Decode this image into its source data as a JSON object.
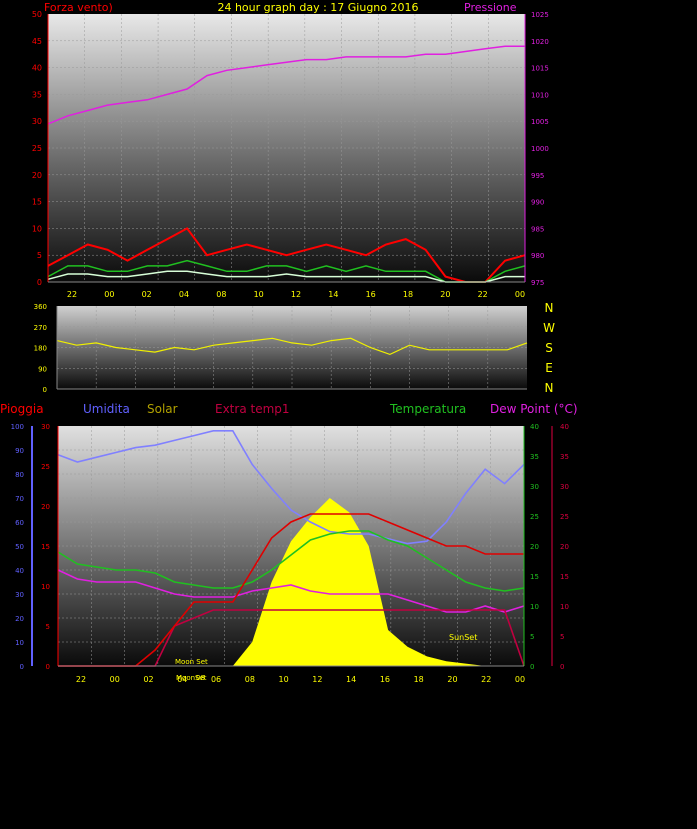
{
  "title": "24 hour graph day : 17 Giugno 2016",
  "colors": {
    "wind": "#ff0000",
    "gust": "#20c020",
    "avgwind": "#d8ffd8",
    "pressure": "#e020e0",
    "direction": "#f0f000",
    "rain": "#e00000",
    "humidity": "#8080ff",
    "solar": "#b0a000",
    "solarfill": "#ffff00",
    "extratemp": "#c00040",
    "temperature": "#20c020",
    "dewpoint": "#e020e0",
    "axis_left1": "#ff0000",
    "axis_right1": "#e020e0",
    "axis_rain": "#ff0000",
    "axis_hum": "#6060ff",
    "axis_temp": "#20c020",
    "axis_dew": "#e00040"
  },
  "chart_data": [
    {
      "type": "line",
      "id": "wind-pressure",
      "title": "24 hour graph day : 17 Giugno 2016",
      "left_label": "Forza vento)",
      "right_label": "Pressione",
      "x_ticks": [
        "22",
        "00",
        "02",
        "04",
        "08",
        "10",
        "12",
        "14",
        "16",
        "18",
        "20",
        "22",
        "00"
      ],
      "ylim_left": [
        0,
        50
      ],
      "yticks_left": [
        "0",
        "5",
        "10",
        "15",
        "20",
        "25",
        "30",
        "35",
        "40",
        "45",
        "50"
      ],
      "ylim_right": [
        975,
        1025
      ],
      "yticks_right": [
        "975",
        "980",
        "985",
        "990",
        "995",
        "1000",
        "1005",
        "1010",
        "1015",
        "1020",
        "1025"
      ],
      "x": [
        0,
        1,
        2,
        3,
        4,
        5,
        6,
        7,
        8,
        9,
        10,
        11,
        12,
        13,
        14,
        15,
        16,
        17,
        18,
        19,
        20,
        21,
        22,
        23,
        24
      ],
      "series": [
        {
          "key": "pressure",
          "values": [
            1004.5,
            1006,
            1007,
            1008,
            1008.5,
            1009,
            1010,
            1011,
            1013.5,
            1014.5,
            1015,
            1015.5,
            1016,
            1016.5,
            1016.5,
            1017,
            1017,
            1017,
            1017,
            1017.5,
            1017.5,
            1018,
            1018.5,
            1019,
            1019
          ]
        },
        {
          "key": "wind",
          "values": [
            3,
            5,
            7,
            6,
            4,
            6,
            8,
            10,
            5,
            6,
            7,
            6,
            5,
            6,
            7,
            6,
            5,
            7,
            8,
            6,
            1,
            0,
            0,
            4,
            5
          ]
        },
        {
          "key": "gust",
          "values": [
            1,
            3,
            3,
            2,
            2,
            3,
            3,
            4,
            3,
            2,
            2,
            3,
            3,
            2,
            3,
            2,
            3,
            2,
            2,
            2,
            0,
            0,
            0,
            2,
            3
          ]
        },
        {
          "key": "avgwind",
          "values": [
            0.5,
            1.5,
            1.5,
            1,
            1,
            1.5,
            2,
            2,
            1.5,
            1,
            1,
            1,
            1.5,
            1,
            1,
            1,
            1,
            1,
            1,
            1,
            0,
            0,
            0,
            1,
            1
          ]
        }
      ]
    },
    {
      "type": "line",
      "id": "wind-direction",
      "ylim": [
        0,
        360
      ],
      "yticks": [
        "0",
        "90",
        "180",
        "270",
        "360"
      ],
      "compass": [
        "N",
        "W",
        "S",
        "E",
        "N"
      ],
      "x": [
        0,
        1,
        2,
        3,
        4,
        5,
        6,
        7,
        8,
        9,
        10,
        11,
        12,
        13,
        14,
        15,
        16,
        17,
        18,
        19,
        20,
        21,
        22,
        23,
        24
      ],
      "series": [
        {
          "key": "direction",
          "values": [
            210,
            190,
            200,
            180,
            170,
            160,
            180,
            170,
            190,
            200,
            210,
            220,
            200,
            190,
            210,
            220,
            180,
            150,
            190,
            170,
            170,
            170,
            170,
            170,
            200
          ]
        }
      ]
    },
    {
      "type": "line",
      "id": "multi",
      "legend": {
        "rain": "Pioggia",
        "humidity": "Umidita",
        "solar": "Solar",
        "extratemp": "Extra temp1",
        "temperature": "Temperatura",
        "dewpoint": "Dew Point (°C)"
      },
      "x_ticks": [
        "22",
        "00",
        "02",
        "04",
        "06",
        "08",
        "10",
        "12",
        "14",
        "16",
        "18",
        "20",
        "22",
        "00"
      ],
      "ylim_hum": [
        0,
        100
      ],
      "yticks_hum": [
        "0",
        "10",
        "20",
        "30",
        "40",
        "50",
        "60",
        "70",
        "80",
        "90",
        "100"
      ],
      "ylim_rain": [
        0,
        30
      ],
      "yticks_rain": [
        "0",
        "5",
        "10",
        "15",
        "20",
        "25",
        "30"
      ],
      "ylim_temp": [
        0,
        40
      ],
      "yticks_temp": [
        "0",
        "5",
        "10",
        "15",
        "20",
        "25",
        "30",
        "35",
        "40"
      ],
      "ylim_dew": [
        0,
        40
      ],
      "yticks_dew": [
        "0",
        "5",
        "10",
        "15",
        "20",
        "25",
        "30",
        "35",
        "40"
      ],
      "annotations": [
        "Moon Set",
        "MoonSet",
        "08",
        "SunSet"
      ],
      "x": [
        0,
        1,
        2,
        3,
        4,
        5,
        6,
        7,
        8,
        9,
        10,
        11,
        12,
        13,
        14,
        15,
        16,
        17,
        18,
        19,
        20,
        21,
        22,
        23,
        24
      ],
      "series": [
        {
          "key": "humidity",
          "values": [
            88,
            85,
            87,
            89,
            91,
            92,
            94,
            96,
            98,
            98,
            84,
            74,
            65,
            60,
            56,
            55,
            55,
            53,
            51,
            52,
            60,
            72,
            82,
            76,
            84
          ]
        },
        {
          "key": "solar",
          "values": [
            0,
            0,
            0,
            0,
            0,
            0,
            0,
            0,
            0,
            0,
            100,
            350,
            520,
            620,
            700,
            640,
            500,
            150,
            80,
            40,
            20,
            10,
            0,
            0,
            0
          ]
        },
        {
          "key": "temperature",
          "values": [
            19,
            17,
            16.5,
            16,
            16,
            15.5,
            14,
            13.5,
            13,
            13,
            14,
            16,
            18.5,
            21,
            22,
            22.5,
            22.5,
            21,
            20,
            18,
            16,
            14,
            13,
            12.5,
            13
          ]
        },
        {
          "key": "dewpoint",
          "values": [
            16,
            14.5,
            14,
            14,
            14,
            13,
            12,
            11.5,
            11.5,
            11.5,
            12.5,
            13,
            13.5,
            12.5,
            12,
            12,
            12,
            12,
            11,
            10,
            9,
            9,
            10,
            9,
            10
          ]
        },
        {
          "key": "extratemp",
          "values": [
            0,
            0,
            0,
            0,
            0,
            0,
            5,
            6,
            7,
            7,
            7,
            7,
            7,
            7,
            7,
            7,
            7,
            7,
            7,
            7,
            7,
            7,
            7,
            7,
            0
          ]
        },
        {
          "key": "rain",
          "values": [
            0,
            0,
            0,
            0,
            0,
            2,
            5,
            8,
            8,
            8,
            12,
            16,
            18,
            19,
            19,
            19,
            19,
            18,
            17,
            16,
            15,
            15,
            14,
            14,
            14
          ]
        }
      ]
    }
  ]
}
